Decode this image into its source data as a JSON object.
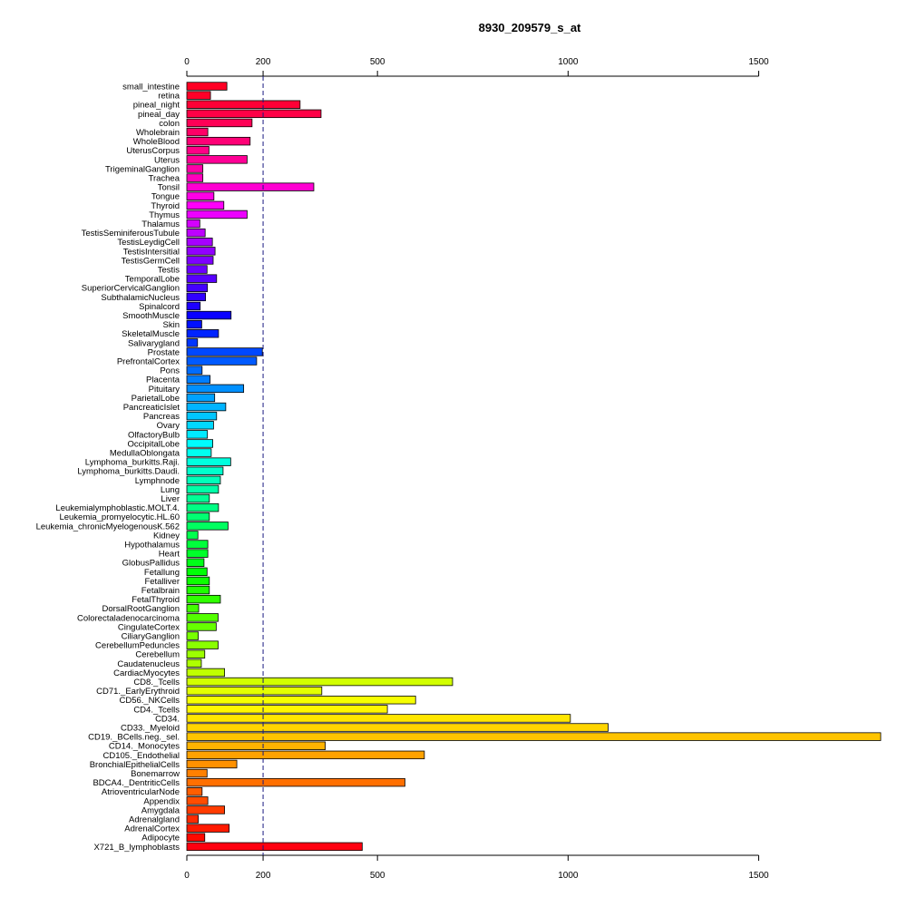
{
  "chart_data": {
    "type": "bar",
    "orientation": "horizontal",
    "title": "8930_209579_s_at",
    "xlabel": "",
    "ylabel": "",
    "xlim": [
      0,
      1820
    ],
    "xticks": [
      0,
      200,
      500,
      1000,
      1500
    ],
    "reference_line": 200,
    "grid": false,
    "categories": [
      "small_intestine",
      "retina",
      "pineal_night",
      "pineal_day",
      "colon",
      "Wholebrain",
      "WholeBlood",
      "UterusCorpus",
      "Uterus",
      "TrigeminalGanglion",
      "Trachea",
      "Tonsil",
      "Tongue",
      "Thyroid",
      "Thymus",
      "Thalamus",
      "TestisSeminiferousTubule",
      "TestisLeydigCell",
      "TestisIntersitial",
      "TestisGermCell",
      "Testis",
      "TemporalLobe",
      "SuperiorCervicalGanglion",
      "SubthalamicNucleus",
      "Spinalcord",
      "SmoothMuscle",
      "Skin",
      "SkeletalMuscle",
      "Salivarygland",
      "Prostate",
      "PrefrontalCortex",
      "Pons",
      "Placenta",
      "Pituitary",
      "ParietalLobe",
      "PancreaticIslet",
      "Pancreas",
      "Ovary",
      "OlfactoryBulb",
      "OccipitalLobe",
      "MedullaOblongata",
      "Lymphoma_burkitts.Raji.",
      "Lymphoma_burkitts.Daudi.",
      "Lymphnode",
      "Lung",
      "Liver",
      "Leukemialymphoblastic.MOLT.4.",
      "Leukemia_promyelocytic.HL.60",
      "Leukemia_chronicMyelogenousK.562",
      "Kidney",
      "Hypothalamus",
      "Heart",
      "GlobusPallidus",
      "Fetallung",
      "Fetalliver",
      "Fetalbrain",
      "FetalThyroid",
      "DorsalRootGanglion",
      "Colorectaladenocarcinoma",
      "CingulateCortex",
      "CiliaryGanglion",
      "CerebellumPeduncles",
      "Cerebellum",
      "Caudatenucleus",
      "CardiacMyocytes",
      "CD8._Tcells",
      "CD71._EarlyErythroid",
      "CD56._NKCells",
      "CD4._Tcells",
      "CD34.",
      "CD33._Myeloid",
      "CD19._BCells.neg._sel.",
      "CD14._Monocytes",
      "CD105._Endothelial",
      "BronchialEpithelialCells",
      "Bonemarrow",
      "BDCA4._DentriticCells",
      "AtrioventricularNode",
      "Appendix",
      "Amygdala",
      "Adrenalgland",
      "AdrenalCortex",
      "Adipocyte",
      "X721_B_lymphoblasts"
    ],
    "values": [
      105,
      62,
      297,
      352,
      171,
      55,
      166,
      58,
      158,
      42,
      42,
      333,
      71,
      97,
      158,
      34,
      48,
      67,
      74,
      69,
      53,
      78,
      54,
      49,
      35,
      116,
      39,
      83,
      28,
      198,
      183,
      40,
      61,
      149,
      73,
      102,
      78,
      70,
      54,
      68,
      64,
      115,
      95,
      88,
      83,
      59,
      83,
      59,
      108,
      29,
      55,
      55,
      45,
      53,
      59,
      59,
      88,
      31,
      82,
      77,
      30,
      82,
      47,
      38,
      99,
      697,
      354,
      600,
      526,
      1006,
      1105,
      1820,
      363,
      623,
      131,
      53,
      572,
      40,
      55,
      99,
      30,
      111,
      47,
      460
    ],
    "colors": [
      "#ff0024",
      "#ff0028",
      "#ff0036",
      "#ff0046",
      "#ff0056",
      "#ff0066",
      "#ff0076",
      "#ff0086",
      "#ff0096",
      "#ff00a8",
      "#ff00bd",
      "#ff00d2",
      "#ff00e6",
      "#ff00fa",
      "#ec00ff",
      "#d400ff",
      "#bd00ff",
      "#a600ff",
      "#9200ff",
      "#7e00ff",
      "#6b00ff",
      "#5800ff",
      "#4400ff",
      "#3000ff",
      "#1d00ff",
      "#0a00ff",
      "#0011ff",
      "#0024ff",
      "#0036ff",
      "#0048ff",
      "#005aff",
      "#006cff",
      "#007eff",
      "#0090ff",
      "#00a2ff",
      "#00b4ff",
      "#00c6ff",
      "#00d8ff",
      "#00eaff",
      "#00fcff",
      "#00fff0",
      "#00ffde",
      "#00ffcc",
      "#00ffba",
      "#00ffa8",
      "#00ff96",
      "#00ff84",
      "#00ff72",
      "#00ff60",
      "#00ff4e",
      "#00ff3c",
      "#00ff2a",
      "#00ff18",
      "#00ff06",
      "#0cff00",
      "#1eff00",
      "#30ff00",
      "#42ff00",
      "#54ff00",
      "#66ff00",
      "#78ff00",
      "#8aff00",
      "#9cff00",
      "#aeff00",
      "#c0ff00",
      "#d2ff00",
      "#e4ff00",
      "#f6ff00",
      "#fff700",
      "#ffe600",
      "#ffd500",
      "#ffc400",
      "#ffb300",
      "#ffa200",
      "#ff9100",
      "#ff8000",
      "#ff6f00",
      "#ff5e00",
      "#ff4d00",
      "#ff3c00",
      "#ff2b00",
      "#ff1a00",
      "#ff0900",
      "#ff0010"
    ]
  }
}
